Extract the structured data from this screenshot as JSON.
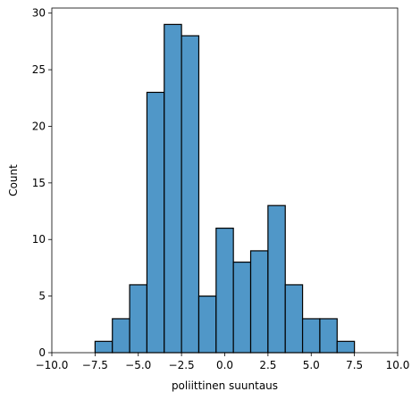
{
  "chart_data": {
    "type": "bar",
    "subtype": "histogram",
    "title": "",
    "xlabel": "poliittinen suuntaus",
    "ylabel": "Count",
    "xlim": [
      -10,
      10
    ],
    "ylim": [
      0,
      30.45
    ],
    "xticks": [
      -10,
      -7.5,
      -5,
      -2.5,
      0,
      2.5,
      5,
      7.5,
      10
    ],
    "xtick_labels": [
      "−10.0",
      "−7.5",
      "−5.0",
      "−2.5",
      "0.0",
      "2.5",
      "5.0",
      "7.5",
      "10.0"
    ],
    "yticks": [
      0,
      5,
      10,
      15,
      20,
      25,
      30
    ],
    "ytick_labels": [
      "0",
      "5",
      "10",
      "15",
      "20",
      "25",
      "30"
    ],
    "grid": false,
    "bar_color": "#5097c8",
    "edge_color": "#000000",
    "bins": [
      {
        "x0": -7.5,
        "x1": -6.5,
        "count": 1
      },
      {
        "x0": -6.5,
        "x1": -5.5,
        "count": 3
      },
      {
        "x0": -5.5,
        "x1": -4.5,
        "count": 6
      },
      {
        "x0": -4.5,
        "x1": -3.5,
        "count": 23
      },
      {
        "x0": -3.5,
        "x1": -2.5,
        "count": 29
      },
      {
        "x0": -2.5,
        "x1": -1.5,
        "count": 28
      },
      {
        "x0": -1.5,
        "x1": -0.5,
        "count": 5
      },
      {
        "x0": -0.5,
        "x1": 0.5,
        "count": 11
      },
      {
        "x0": 0.5,
        "x1": 1.5,
        "count": 8
      },
      {
        "x0": 1.5,
        "x1": 2.5,
        "count": 9
      },
      {
        "x0": 2.5,
        "x1": 3.5,
        "count": 13
      },
      {
        "x0": 3.5,
        "x1": 4.5,
        "count": 6
      },
      {
        "x0": 4.5,
        "x1": 5.5,
        "count": 3
      },
      {
        "x0": 5.5,
        "x1": 6.5,
        "count": 3
      },
      {
        "x0": 6.5,
        "x1": 7.5,
        "count": 1
      }
    ]
  }
}
